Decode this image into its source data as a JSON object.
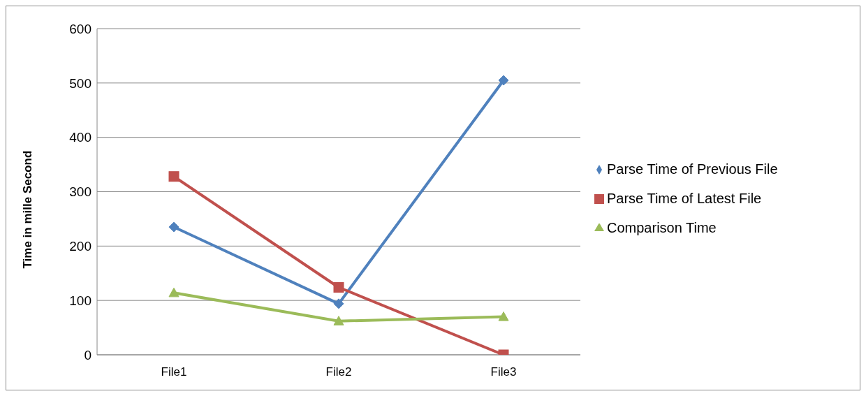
{
  "chart_data": {
    "type": "line",
    "ylabel": "Time in mille Second",
    "categories": [
      "File1",
      "File2",
      "File3"
    ],
    "series": [
      {
        "name": "Parse Time of Previous File",
        "color": "#4f81bd",
        "marker": "diamond",
        "values": [
          235,
          94,
          505
        ]
      },
      {
        "name": "Parse Time of Latest File",
        "color": "#c0504d",
        "marker": "square",
        "values": [
          328,
          124,
          0
        ]
      },
      {
        "name": "Comparison Time",
        "color": "#9bbb59",
        "marker": "triangle",
        "values": [
          114,
          62,
          70
        ]
      }
    ],
    "ylim": [
      0,
      600
    ],
    "yticks": [
      0,
      100,
      200,
      300,
      400,
      500,
      600
    ],
    "grid": "y",
    "legend": "right"
  }
}
